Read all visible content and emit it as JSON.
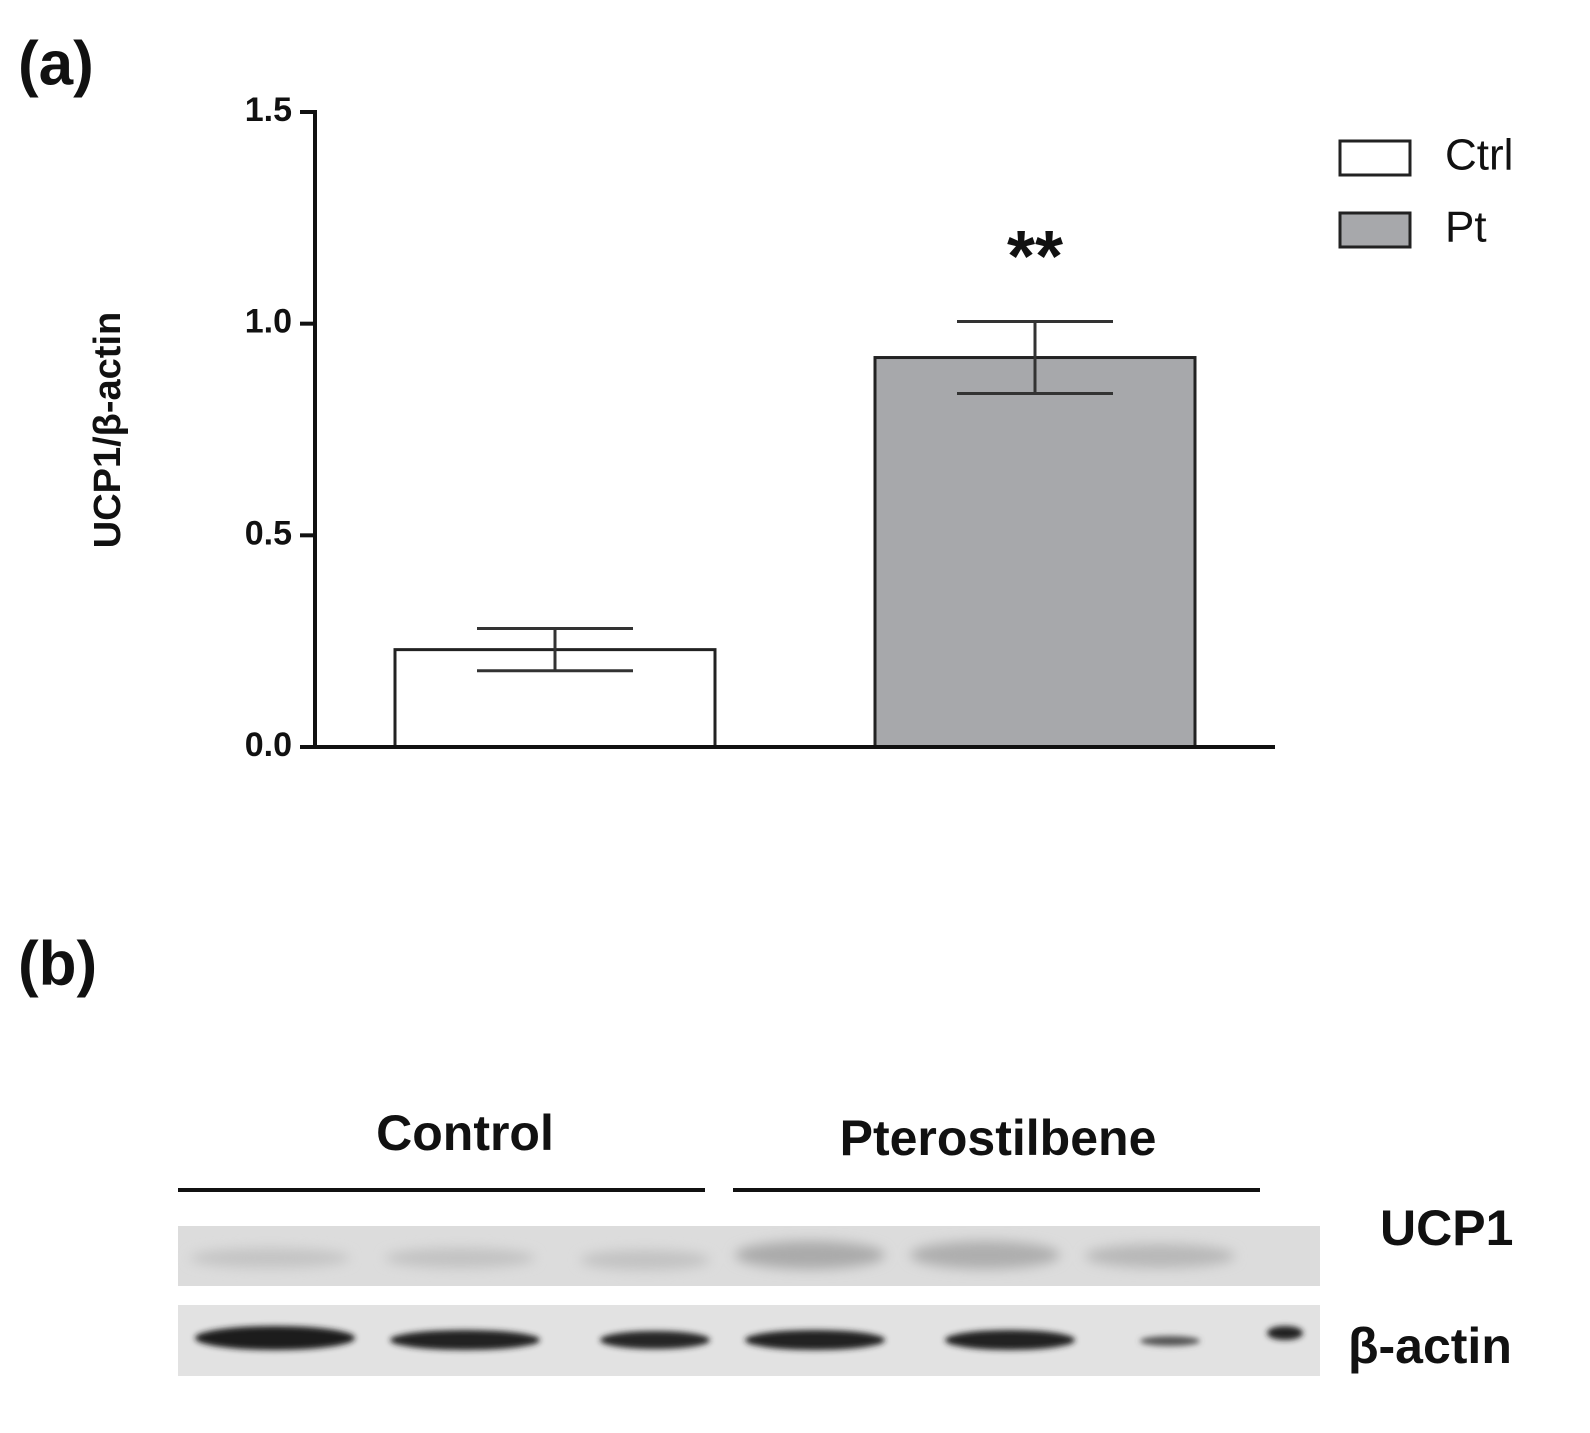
{
  "chart_data": {
    "type": "bar",
    "ylabel": "UCP1/β-actin",
    "series": [
      {
        "name": "Ctrl",
        "color": "#ffffff",
        "values": [
          0.23
        ],
        "errors": [
          0.05
        ]
      },
      {
        "name": "Pt",
        "color": "#a7a8ab",
        "values": [
          0.92
        ],
        "errors": [
          0.085
        ]
      }
    ],
    "annotations": [
      "**"
    ],
    "ylim": [
      0,
      1.5
    ],
    "yticks": [
      {
        "value": 0,
        "label": "0.0"
      },
      {
        "value": 0.5,
        "label": "0.5"
      },
      {
        "value": 1,
        "label": "1.0"
      },
      {
        "value": 1.5,
        "label": "1.5"
      }
    ],
    "legend": "top-right"
  },
  "panels": {
    "a": "(a)",
    "b": "(b)"
  },
  "blot": {
    "groups": [
      "Control",
      "Pterostilbene"
    ],
    "rows": [
      "UCP1",
      "β-actin"
    ]
  }
}
